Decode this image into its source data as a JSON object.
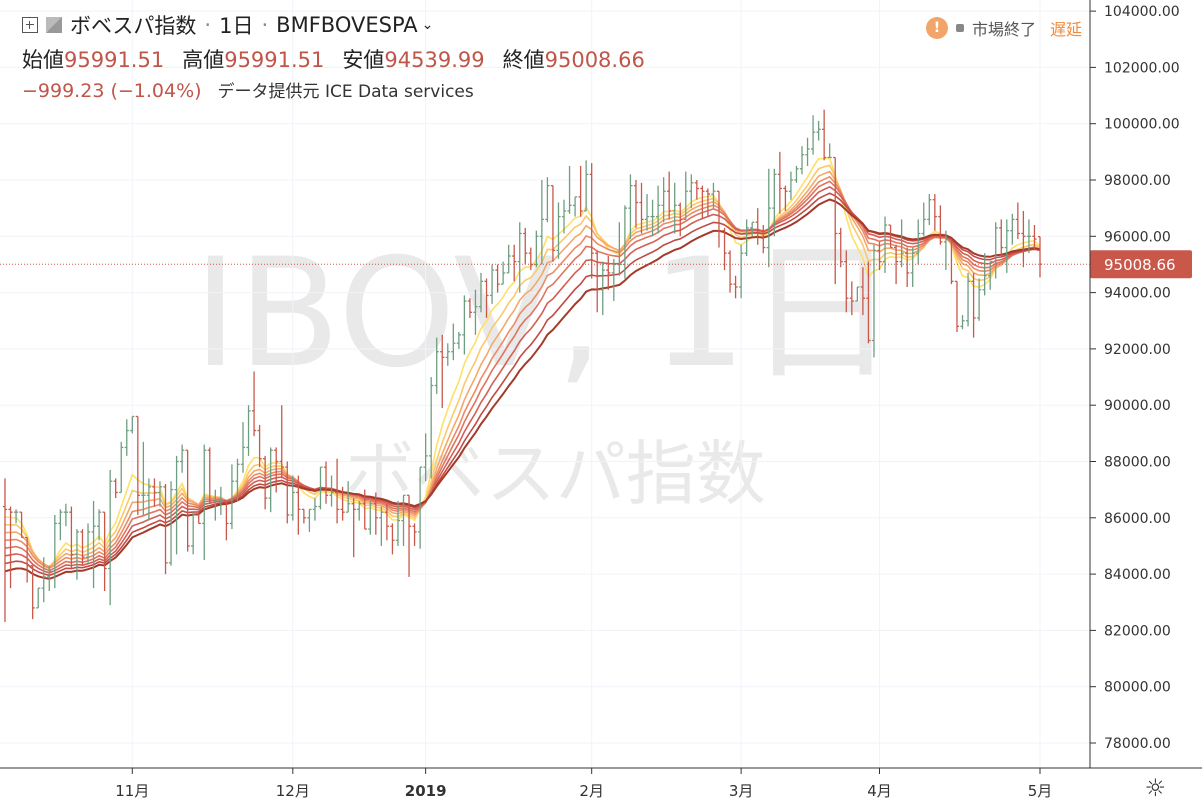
{
  "header": {
    "symbol_name": "ボベスパ指数",
    "sep": "·",
    "interval": "1日",
    "ticker": "BMFBOVESPA",
    "chevron_icon": "chevron-down-icon",
    "ohlc": [
      {
        "label": "始値",
        "value": "95991.51"
      },
      {
        "label": "高値",
        "value": "95991.51"
      },
      {
        "label": "安値",
        "value": "94539.99"
      },
      {
        "label": "終値",
        "value": "95008.66"
      }
    ],
    "change": "−999.23 (−1.04%)",
    "provider": "データ提供元 ICE Data services"
  },
  "status": {
    "market": "市場終了",
    "delay": "遅延",
    "warn_glyph": "!"
  },
  "watermark": {
    "line1": "IBOV, 1日",
    "line2": "ボベスパ指数"
  },
  "settings_icon": "gear-icon",
  "chart_data": {
    "type": "ohlc",
    "y_ticks": [
      "78000.00",
      "80000.00",
      "82000.00",
      "84000.00",
      "86000.00",
      "88000.00",
      "90000.00",
      "92000.00",
      "94000.00",
      "96000.00",
      "98000.00",
      "100000.00",
      "102000.00",
      "104000.00"
    ],
    "ylim": [
      77000,
      104800
    ],
    "x_ticks": [
      {
        "label": "11月",
        "bar": 23
      },
      {
        "label": "12月",
        "bar": 52
      },
      {
        "label": "2019",
        "bar": 76
      },
      {
        "label": "2月",
        "bar": 106
      },
      {
        "label": "3月",
        "bar": 133
      },
      {
        "label": "4月",
        "bar": 158
      },
      {
        "label": "5月",
        "bar": 187
      }
    ],
    "last_price": "95008.66",
    "last_value": 95008.66,
    "colors": {
      "up": "#6e9e81",
      "down": "#c9584a",
      "ribbon": [
        "#ffe066",
        "#fbc86c",
        "#f4a96a",
        "#ec8c66",
        "#e1735f",
        "#d35f55",
        "#c14b44",
        "#a33a2a"
      ]
    },
    "ribbon_periods": [
      8,
      11,
      14,
      17,
      20,
      24,
      29,
      34
    ],
    "bars": [
      [
        86400,
        87400,
        82300,
        86300
      ],
      [
        86300,
        86400,
        83500,
        86200
      ],
      [
        86200,
        86300,
        85800,
        86200
      ],
      [
        86200,
        86200,
        85300,
        85300
      ],
      [
        85300,
        85300,
        83700,
        84300
      ],
      [
        84300,
        84300,
        82400,
        82800
      ],
      [
        82800,
        83500,
        82800,
        83500
      ],
      [
        83500,
        84600,
        83000,
        83900
      ],
      [
        83900,
        84300,
        83400,
        84100
      ],
      [
        84100,
        86100,
        83500,
        85800
      ],
      [
        85800,
        86300,
        85200,
        86200
      ],
      [
        86200,
        86500,
        85700,
        86200
      ],
      [
        86200,
        86400,
        84200,
        84700
      ],
      [
        84700,
        85600,
        83800,
        85500
      ],
      [
        85500,
        85600,
        84300,
        84600
      ],
      [
        84600,
        85800,
        84400,
        85500
      ],
      [
        85500,
        86600,
        83500,
        85700
      ],
      [
        85700,
        86300,
        85200,
        86200
      ],
      [
        86200,
        86200,
        83400,
        84200
      ],
      [
        84200,
        87700,
        82900,
        87300
      ],
      [
        87300,
        87400,
        86700,
        86900
      ],
      [
        86900,
        88700,
        86900,
        88500
      ],
      [
        88500,
        89500,
        88200,
        89100
      ],
      [
        89100,
        89600,
        89000,
        89600
      ],
      [
        89600,
        89600,
        86100,
        86800
      ],
      [
        86800,
        88700,
        86100,
        86800
      ],
      [
        86800,
        87400,
        85900,
        87100
      ],
      [
        87100,
        87400,
        86400,
        86900
      ],
      [
        86900,
        87300,
        86400,
        87100
      ],
      [
        87100,
        87200,
        84000,
        84400
      ],
      [
        84400,
        87300,
        84300,
        87000
      ],
      [
        87000,
        88200,
        84700,
        88000
      ],
      [
        88000,
        88600,
        87600,
        88400
      ],
      [
        88400,
        88400,
        84800,
        85000
      ],
      [
        85000,
        86200,
        84700,
        86100
      ],
      [
        86100,
        86200,
        85800,
        85800
      ],
      [
        85800,
        88600,
        84500,
        88400
      ],
      [
        88400,
        88500,
        86500,
        86600
      ],
      [
        86600,
        87000,
        85900,
        86600
      ],
      [
        86600,
        87100,
        86100,
        86600
      ],
      [
        86600,
        86600,
        85200,
        85800
      ],
      [
        85800,
        87900,
        85600,
        87300
      ],
      [
        87300,
        88100,
        86600,
        87900
      ],
      [
        87900,
        89400,
        87600,
        88500
      ],
      [
        88500,
        90000,
        88200,
        89800
      ],
      [
        89800,
        91200,
        88900,
        89100
      ],
      [
        89100,
        89300,
        87800,
        88100
      ],
      [
        88100,
        88200,
        86300,
        86700
      ],
      [
        86700,
        88500,
        86200,
        88400
      ],
      [
        88400,
        88500,
        86900,
        88000
      ],
      [
        88000,
        90000,
        87400,
        87800
      ],
      [
        87800,
        88000,
        85800,
        86100
      ],
      [
        86100,
        87500,
        85900,
        86900
      ],
      [
        86900,
        87500,
        85400,
        86300
      ],
      [
        86300,
        86300,
        85800,
        86000
      ],
      [
        86000,
        86300,
        85500,
        86300
      ],
      [
        86300,
        86700,
        85900,
        86400
      ],
      [
        86400,
        87800,
        86300,
        87800
      ],
      [
        87800,
        88000,
        86500,
        86800
      ],
      [
        86800,
        87500,
        86400,
        86900
      ],
      [
        86900,
        88100,
        85800,
        86300
      ],
      [
        86300,
        87100,
        85900,
        86200
      ],
      [
        86200,
        87300,
        86200,
        86500
      ],
      [
        86500,
        86700,
        84600,
        86300
      ],
      [
        86300,
        86600,
        85900,
        86500
      ],
      [
        86500,
        87000,
        85600,
        85600
      ],
      [
        85600,
        86600,
        85400,
        86500
      ],
      [
        86500,
        86900,
        85400,
        86000
      ],
      [
        86000,
        86400,
        85000,
        86200
      ],
      [
        86200,
        86500,
        85200,
        85700
      ],
      [
        85700,
        85800,
        84700,
        85200
      ],
      [
        85200,
        86600,
        85000,
        85900
      ],
      [
        85900,
        86800,
        85000,
        86800
      ],
      [
        86800,
        86800,
        83900,
        85700
      ],
      [
        85700,
        85800,
        85000,
        85500
      ],
      [
        85500,
        87800,
        84900,
        87800
      ],
      [
        87800,
        89000,
        87300,
        88200
      ],
      [
        88200,
        91000,
        87400,
        90700
      ],
      [
        90700,
        92400,
        90400,
        91900
      ],
      [
        91900,
        92500,
        89900,
        91700
      ],
      [
        91700,
        92200,
        91400,
        91900
      ],
      [
        91900,
        92900,
        91600,
        92200
      ],
      [
        92200,
        92600,
        92000,
        92500
      ],
      [
        92500,
        93900,
        91800,
        93700
      ],
      [
        93700,
        93800,
        93100,
        93300
      ],
      [
        93300,
        94100,
        92500,
        93500
      ],
      [
        93500,
        94700,
        93300,
        94400
      ],
      [
        94400,
        94500,
        93100,
        93900
      ],
      [
        93900,
        95000,
        93600,
        94800
      ],
      [
        94800,
        95000,
        94000,
        94300
      ],
      [
        94300,
        95100,
        94300,
        94700
      ],
      [
        94700,
        95700,
        94700,
        95300
      ],
      [
        95300,
        95700,
        94400,
        95100
      ],
      [
        95100,
        96500,
        94000,
        96100
      ],
      [
        96100,
        96300,
        95000,
        95400
      ],
      [
        95400,
        95600,
        94800,
        95000
      ],
      [
        95000,
        96200,
        94900,
        96000
      ],
      [
        96000,
        98000,
        95000,
        96600
      ],
      [
        96600,
        98100,
        96500,
        97800
      ],
      [
        97800,
        97800,
        95100,
        95500
      ],
      [
        95500,
        97200,
        95200,
        96700
      ],
      [
        96700,
        97300,
        96100,
        96900
      ],
      [
        96900,
        98500,
        96800,
        97100
      ],
      [
        97100,
        97400,
        96700,
        97400
      ],
      [
        97400,
        98500,
        96700,
        96900
      ],
      [
        96900,
        98700,
        96900,
        98200
      ],
      [
        98200,
        98600,
        94500,
        95400
      ],
      [
        95400,
        95500,
        93300,
        94100
      ],
      [
        94100,
        95100,
        93200,
        94800
      ],
      [
        94800,
        95300,
        94100,
        94700
      ],
      [
        94700,
        95200,
        93700,
        95000
      ],
      [
        95000,
        96500,
        94600,
        95000
      ],
      [
        95000,
        97100,
        94500,
        97000
      ],
      [
        97000,
        98200,
        95900,
        97800
      ],
      [
        97800,
        98000,
        96300,
        97200
      ],
      [
        97200,
        97900,
        96100,
        96600
      ],
      [
        96600,
        97500,
        96200,
        96700
      ],
      [
        96700,
        97300,
        96000,
        96700
      ],
      [
        96700,
        97800,
        96100,
        97100
      ],
      [
        97100,
        98100,
        96500,
        97600
      ],
      [
        97600,
        98300,
        96600,
        96900
      ],
      [
        96900,
        97900,
        96100,
        97100
      ],
      [
        97100,
        97200,
        96000,
        96600
      ],
      [
        96600,
        98300,
        96600,
        97600
      ],
      [
        97600,
        98200,
        97000,
        97900
      ],
      [
        97900,
        98000,
        97300,
        97700
      ],
      [
        97700,
        97800,
        96600,
        97600
      ],
      [
        97600,
        97700,
        96700,
        97500
      ],
      [
        97500,
        97900,
        97000,
        97600
      ],
      [
        97600,
        97600,
        95600,
        96200
      ],
      [
        96200,
        96300,
        94800,
        95400
      ],
      [
        95400,
        95500,
        94000,
        94300
      ],
      [
        94300,
        94600,
        93800,
        94200
      ],
      [
        94200,
        95700,
        93800,
        95400
      ],
      [
        95400,
        96600,
        95300,
        96300
      ],
      [
        96300,
        96500,
        96000,
        96500
      ],
      [
        96500,
        97000,
        95700,
        96200
      ],
      [
        96200,
        96400,
        95400,
        95600
      ],
      [
        95600,
        98400,
        94900,
        97000
      ],
      [
        97000,
        98400,
        96000,
        98200
      ],
      [
        98200,
        99000,
        96800,
        97700
      ],
      [
        97700,
        97800,
        96900,
        97600
      ],
      [
        97600,
        98300,
        97300,
        98000
      ],
      [
        98000,
        98500,
        97900,
        98400
      ],
      [
        98400,
        99200,
        98200,
        98900
      ],
      [
        98900,
        99500,
        98500,
        99100
      ],
      [
        99100,
        100300,
        98900,
        99700
      ],
      [
        99700,
        100100,
        99400,
        99800
      ],
      [
        99800,
        100500,
        98700,
        98800
      ],
      [
        98800,
        99300,
        98800,
        98800
      ],
      [
        98800,
        98800,
        94300,
        96100
      ],
      [
        96100,
        96300,
        94900,
        95100
      ],
      [
        95100,
        95500,
        93300,
        93800
      ],
      [
        93800,
        94400,
        93200,
        93700
      ],
      [
        93700,
        94200,
        93700,
        94200
      ],
      [
        94200,
        94900,
        93200,
        93800
      ],
      [
        93800,
        95100,
        92200,
        92300
      ],
      [
        92300,
        95700,
        91700,
        95500
      ],
      [
        95500,
        95800,
        94800,
        95100
      ],
      [
        95100,
        96700,
        94700,
        96400
      ],
      [
        96400,
        96400,
        95600,
        95600
      ],
      [
        95600,
        95700,
        94300,
        95100
      ],
      [
        95100,
        96600,
        94900,
        95400
      ],
      [
        95400,
        95600,
        94200,
        94700
      ],
      [
        94700,
        95600,
        94200,
        95400
      ],
      [
        95400,
        96600,
        95000,
        96100
      ],
      [
        96100,
        97200,
        96000,
        96600
      ],
      [
        96600,
        97500,
        96400,
        97300
      ],
      [
        97300,
        97500,
        96200,
        96700
      ],
      [
        96700,
        97100,
        95700,
        95800
      ],
      [
        95800,
        96200,
        94800,
        95900
      ],
      [
        95900,
        95900,
        94300,
        94400
      ],
      [
        94400,
        94400,
        92600,
        92800
      ],
      [
        92800,
        93200,
        92700,
        93000
      ],
      [
        93000,
        94700,
        92800,
        94400
      ],
      [
        94400,
        94700,
        92400,
        93100
      ],
      [
        93100,
        94500,
        93000,
        94100
      ],
      [
        94100,
        95400,
        93900,
        94600
      ],
      [
        94600,
        95100,
        94100,
        95100
      ],
      [
        95100,
        96500,
        94500,
        96300
      ],
      [
        96300,
        96600,
        95300,
        95600
      ],
      [
        95600,
        96600,
        94700,
        96200
      ],
      [
        96200,
        96800,
        95700,
        96600
      ],
      [
        96600,
        97200,
        95900,
        96100
      ],
      [
        96100,
        96900,
        94900,
        96000
      ],
      [
        96000,
        96600,
        95400,
        96000
      ],
      [
        96000,
        96400,
        95500,
        95900
      ],
      [
        95990,
        95990,
        94540,
        95009
      ]
    ]
  }
}
